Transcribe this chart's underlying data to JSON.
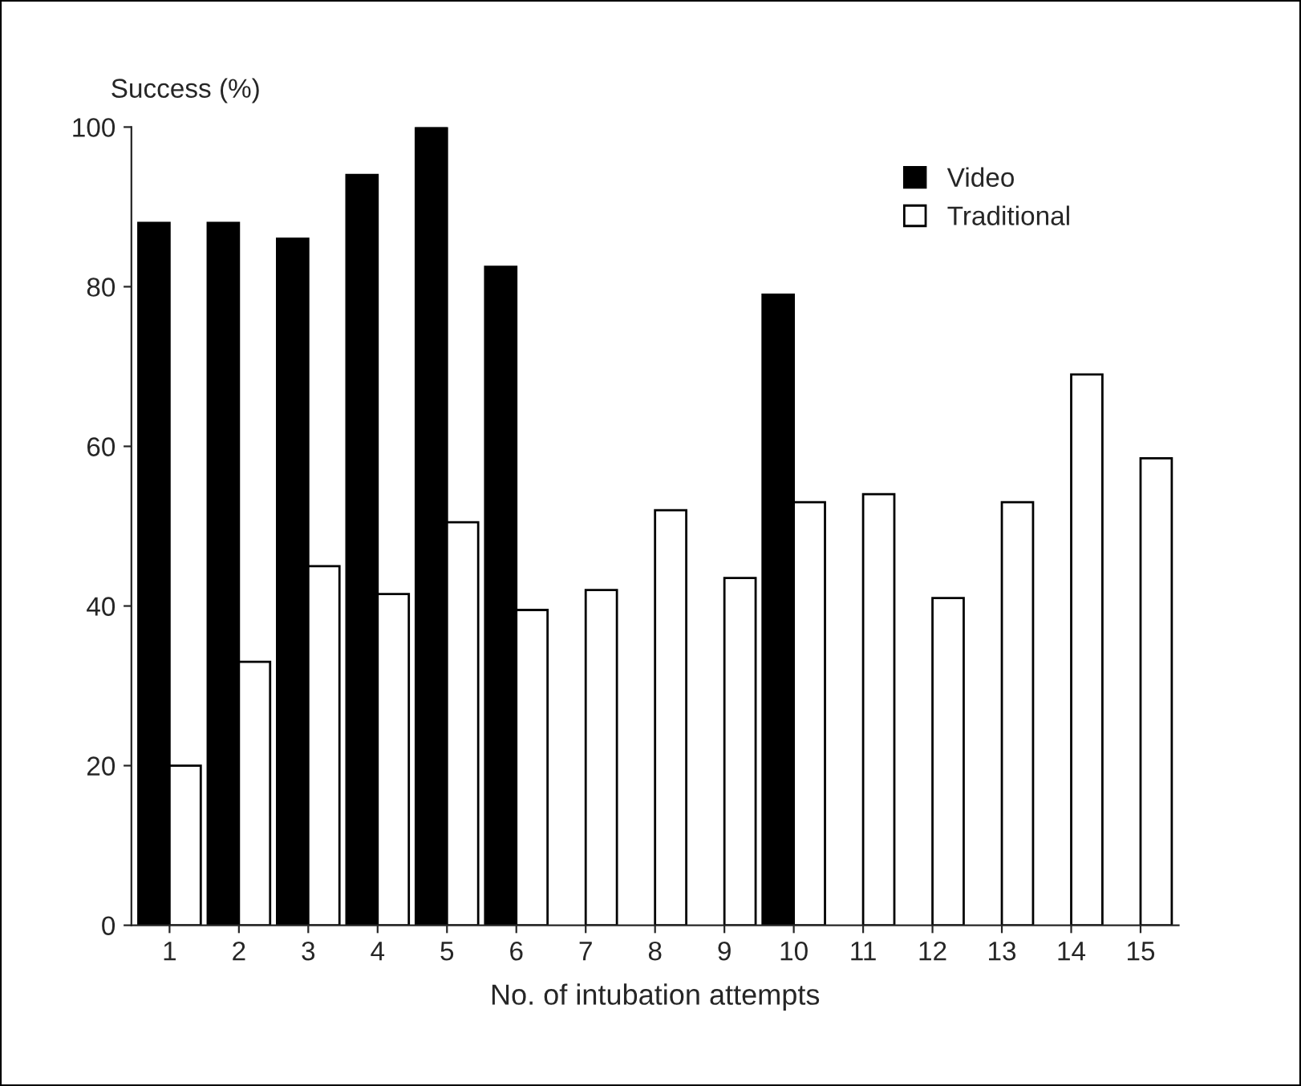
{
  "chart_data": {
    "type": "bar",
    "ylabel": "Success (%)",
    "xlabel": "No. of intubation attempts",
    "categories": [
      "1",
      "2",
      "3",
      "4",
      "5",
      "6",
      "7",
      "8",
      "9",
      "10",
      "11",
      "12",
      "13",
      "14",
      "15"
    ],
    "series": [
      {
        "name": "Video",
        "color": "#000000",
        "values": [
          88,
          88,
          86,
          94,
          100,
          82.5,
          null,
          null,
          null,
          79,
          null,
          null,
          null,
          null,
          null
        ]
      },
      {
        "name": "Traditional",
        "color": "#ffffff",
        "values": [
          20,
          33,
          45,
          41.5,
          50.5,
          39.5,
          42,
          52,
          43.5,
          53,
          54,
          41,
          53,
          69,
          58.5
        ]
      }
    ],
    "ylim": [
      0,
      100
    ],
    "yticks": [
      0,
      20,
      40,
      60,
      80,
      100
    ],
    "grid": false,
    "legend": "top right"
  }
}
